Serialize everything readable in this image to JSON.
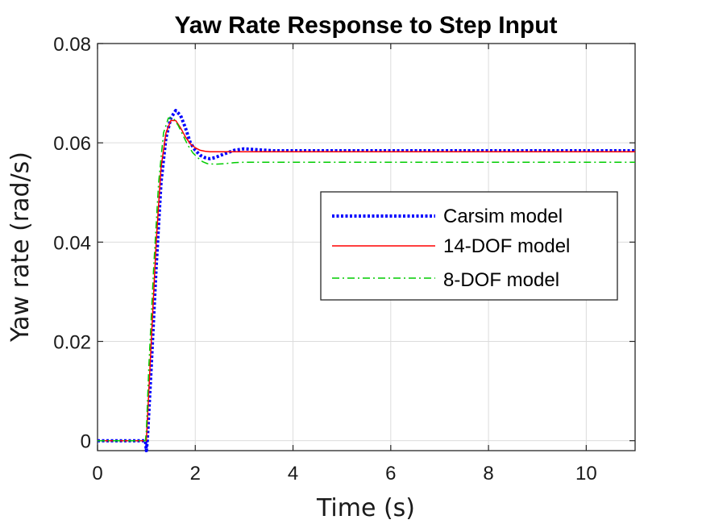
{
  "chart_data": {
    "type": "line",
    "title": "Yaw Rate Response to Step Input",
    "xlabel": "Time (s)",
    "ylabel": "Yaw rate (rad/s)",
    "xlim": [
      0,
      11
    ],
    "ylim": [
      -0.002,
      0.08
    ],
    "xticks": [
      0,
      2,
      4,
      6,
      8,
      10
    ],
    "xtick_labels": [
      "0",
      "2",
      "4",
      "6",
      "8",
      "10"
    ],
    "yticks": [
      0,
      0.02,
      0.04,
      0.06,
      0.08
    ],
    "ytick_labels": [
      "0",
      "0.02",
      "0.04",
      "0.06",
      "0.08"
    ],
    "grid": true,
    "legend_position": "center-right",
    "series": [
      {
        "name": "Carsim model",
        "color": "#0000ff",
        "style": "dotted",
        "x": [
          0,
          0.98,
          1.0,
          1.02,
          1.1,
          1.2,
          1.3,
          1.4,
          1.5,
          1.6,
          1.7,
          1.8,
          1.9,
          2.0,
          2.1,
          2.2,
          2.3,
          2.4,
          2.6,
          2.8,
          3.0,
          3.3,
          3.6,
          4.0,
          5.0,
          6.0,
          7.0,
          8.0,
          9.0,
          10.0,
          11.0
        ],
        "y": [
          0,
          0,
          -0.002,
          0.0,
          0.015,
          0.035,
          0.052,
          0.061,
          0.065,
          0.0665,
          0.0655,
          0.063,
          0.06,
          0.0585,
          0.0575,
          0.057,
          0.0568,
          0.057,
          0.0578,
          0.0585,
          0.0588,
          0.0586,
          0.0584,
          0.0584,
          0.0584,
          0.0584,
          0.0584,
          0.0584,
          0.0584,
          0.0584,
          0.0584
        ]
      },
      {
        "name": "14-DOF model",
        "color": "#ff0000",
        "style": "solid",
        "x": [
          0,
          0.98,
          1.0,
          1.1,
          1.2,
          1.3,
          1.4,
          1.5,
          1.6,
          1.7,
          1.8,
          1.9,
          2.0,
          2.1,
          2.2,
          2.3,
          2.4,
          2.6,
          2.8,
          3.0,
          3.5,
          4.0,
          5.0,
          6.0,
          7.0,
          8.0,
          9.0,
          10.0,
          11.0
        ],
        "y": [
          0,
          0,
          0.0,
          0.02,
          0.04,
          0.055,
          0.062,
          0.0645,
          0.0645,
          0.063,
          0.0612,
          0.0598,
          0.059,
          0.0585,
          0.0583,
          0.0582,
          0.0582,
          0.0582,
          0.0582,
          0.0582,
          0.0582,
          0.0582,
          0.0582,
          0.0582,
          0.0582,
          0.0582,
          0.0582,
          0.0582,
          0.0582
        ]
      },
      {
        "name": "8-DOF model",
        "color": "#00cc00",
        "style": "dashdot",
        "x": [
          0,
          0.98,
          1.0,
          1.05,
          1.15,
          1.25,
          1.35,
          1.45,
          1.55,
          1.65,
          1.75,
          1.85,
          1.95,
          2.05,
          2.15,
          2.25,
          2.4,
          2.6,
          2.8,
          3.0,
          3.5,
          4.0,
          5.0,
          6.0,
          7.0,
          8.0,
          9.0,
          10.0,
          11.0
        ],
        "y": [
          0,
          0,
          0.002,
          0.015,
          0.035,
          0.052,
          0.062,
          0.065,
          0.065,
          0.0635,
          0.0615,
          0.0595,
          0.058,
          0.057,
          0.0562,
          0.0558,
          0.0557,
          0.0558,
          0.056,
          0.0561,
          0.0561,
          0.0561,
          0.0561,
          0.0561,
          0.0561,
          0.0561,
          0.0561,
          0.0561,
          0.0561
        ]
      }
    ]
  }
}
